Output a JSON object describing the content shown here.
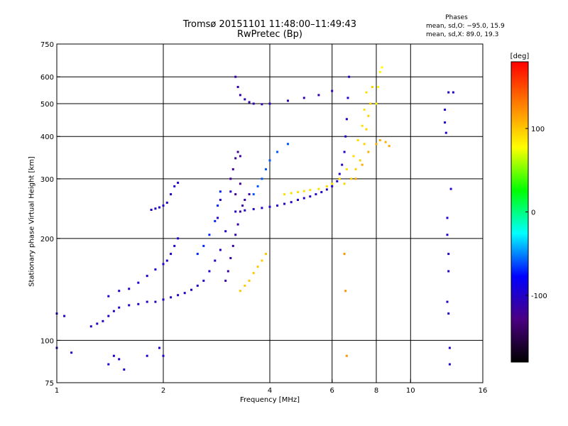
{
  "chart_data": {
    "type": "scatter",
    "title": "Tromsø 20151101 11:48:00–11:49:43",
    "subtitle": "RwPretec (Bp)",
    "phase_info": {
      "title": "Phases",
      "line_o": "mean, sd,O: −95.0, 15.9",
      "line_x": "mean, sd,X:  89.0, 19.3"
    },
    "xlabel": "Frequency [MHz]",
    "ylabel": "Stationary phase Virtual Height [km]",
    "xscale": "log",
    "yscale": "log",
    "xlim": [
      1,
      16
    ],
    "ylim": [
      75,
      750
    ],
    "xticks": [
      1,
      2,
      4,
      6,
      8,
      10,
      16
    ],
    "yticks": [
      75,
      100,
      200,
      300,
      400,
      500,
      600,
      750
    ],
    "grid_x": [
      2,
      4,
      6,
      8,
      10
    ],
    "grid_y": [
      100,
      200,
      300,
      400,
      500,
      600
    ],
    "colorbar": {
      "label": "[deg]",
      "range": [
        -180,
        180
      ],
      "ticks": [
        100,
        0,
        -100
      ],
      "colors": [
        "#000000",
        "#4b0082",
        "#0000ff",
        "#00ffff",
        "#00ff00",
        "#ffff00",
        "#ff8000",
        "#ff0000"
      ]
    },
    "series": [
      {
        "values": [
          [
            1.0,
            120
          ],
          [
            1.05,
            118
          ],
          [
            1.0,
            95
          ],
          [
            1.1,
            92
          ],
          [
            1.25,
            110
          ],
          [
            1.3,
            112
          ],
          [
            1.35,
            114
          ],
          [
            1.4,
            118
          ],
          [
            1.45,
            122
          ],
          [
            1.5,
            125
          ],
          [
            1.6,
            127
          ],
          [
            1.7,
            128
          ],
          [
            1.8,
            130
          ],
          [
            1.9,
            130
          ],
          [
            2.0,
            132
          ],
          [
            2.1,
            134
          ],
          [
            2.2,
            136
          ],
          [
            2.3,
            138
          ],
          [
            2.4,
            141
          ],
          [
            2.5,
            145
          ],
          [
            2.6,
            150
          ],
          [
            2.7,
            160
          ],
          [
            2.8,
            172
          ],
          [
            2.9,
            185
          ],
          [
            3.0,
            210
          ],
          [
            2.85,
            230
          ],
          [
            2.9,
            260
          ],
          [
            3.1,
            275
          ]
        ],
        "phase": -100
      },
      {
        "values": [
          [
            1.4,
            135
          ],
          [
            1.5,
            140
          ],
          [
            1.6,
            142
          ],
          [
            1.7,
            148
          ],
          [
            1.8,
            155
          ],
          [
            1.9,
            162
          ],
          [
            2.0,
            168
          ],
          [
            2.05,
            172
          ],
          [
            2.1,
            180
          ],
          [
            2.15,
            190
          ],
          [
            2.2,
            200
          ]
        ],
        "phase": -95
      },
      {
        "values": [
          [
            1.4,
            85
          ],
          [
            1.45,
            90
          ],
          [
            1.5,
            88
          ],
          [
            1.55,
            82
          ],
          [
            1.8,
            90
          ],
          [
            1.95,
            95
          ],
          [
            2.0,
            90
          ]
        ],
        "phase": -95
      },
      {
        "values": [
          [
            1.85,
            243
          ],
          [
            1.9,
            245
          ],
          [
            1.95,
            247
          ],
          [
            2.0,
            250
          ],
          [
            2.05,
            255
          ],
          [
            2.1,
            270
          ],
          [
            2.15,
            285
          ],
          [
            2.2,
            292
          ]
        ],
        "phase": -100
      },
      {
        "values": [
          [
            2.5,
            180
          ],
          [
            2.6,
            190
          ],
          [
            2.7,
            205
          ],
          [
            2.8,
            225
          ],
          [
            2.85,
            250
          ],
          [
            2.9,
            275
          ]
        ],
        "phase": -70
      },
      {
        "values": [
          [
            3.0,
            150
          ],
          [
            3.05,
            160
          ],
          [
            3.1,
            175
          ],
          [
            3.15,
            190
          ],
          [
            3.2,
            205
          ],
          [
            3.25,
            220
          ],
          [
            3.3,
            240
          ],
          [
            3.35,
            250
          ],
          [
            3.4,
            260
          ],
          [
            3.5,
            270
          ]
        ],
        "phase": -115
      },
      {
        "values": [
          [
            3.1,
            300
          ],
          [
            3.15,
            320
          ],
          [
            3.2,
            345
          ],
          [
            3.25,
            360
          ],
          [
            3.3,
            350
          ],
          [
            3.2,
            270
          ],
          [
            3.3,
            290
          ]
        ],
        "phase": -120
      },
      {
        "values": [
          [
            3.2,
            240
          ],
          [
            3.4,
            242
          ],
          [
            3.6,
            244
          ],
          [
            3.8,
            246
          ],
          [
            4.0,
            248
          ],
          [
            4.2,
            250
          ],
          [
            4.4,
            253
          ],
          [
            4.6,
            256
          ],
          [
            4.8,
            260
          ],
          [
            5.0,
            263
          ],
          [
            5.2,
            266
          ],
          [
            5.4,
            270
          ],
          [
            5.6,
            274
          ],
          [
            5.8,
            279
          ],
          [
            6.0,
            285
          ],
          [
            6.2,
            295
          ],
          [
            6.3,
            310
          ],
          [
            6.4,
            330
          ],
          [
            6.5,
            360
          ],
          [
            6.55,
            400
          ],
          [
            6.6,
            450
          ],
          [
            6.65,
            520
          ],
          [
            6.7,
            600
          ]
        ],
        "phase": -100
      },
      {
        "values": [
          [
            3.2,
            600
          ],
          [
            3.25,
            560
          ],
          [
            3.3,
            530
          ],
          [
            3.4,
            515
          ],
          [
            3.5,
            505
          ],
          [
            3.6,
            500
          ],
          [
            3.8,
            498
          ],
          [
            4.0,
            500
          ],
          [
            4.5,
            510
          ],
          [
            5.0,
            520
          ],
          [
            5.5,
            530
          ],
          [
            6.0,
            545
          ]
        ],
        "phase": -110
      },
      {
        "values": [
          [
            3.6,
            270
          ],
          [
            3.7,
            285
          ],
          [
            3.8,
            300
          ],
          [
            3.9,
            320
          ],
          [
            4.0,
            340
          ],
          [
            4.2,
            360
          ],
          [
            4.5,
            380
          ]
        ],
        "phase": -60
      },
      {
        "values": [
          [
            3.3,
            140
          ],
          [
            3.4,
            145
          ],
          [
            3.5,
            150
          ],
          [
            3.6,
            158
          ],
          [
            3.7,
            165
          ],
          [
            3.8,
            172
          ],
          [
            3.9,
            180
          ]
        ],
        "phase": 100
      },
      {
        "values": [
          [
            4.4,
            270
          ],
          [
            4.6,
            272
          ],
          [
            4.8,
            274
          ],
          [
            5.0,
            276
          ],
          [
            5.2,
            278
          ],
          [
            5.5,
            280
          ],
          [
            5.8,
            285
          ],
          [
            6.0,
            290
          ],
          [
            6.3,
            300
          ],
          [
            6.6,
            320
          ],
          [
            6.9,
            350
          ],
          [
            7.1,
            390
          ],
          [
            7.3,
            430
          ],
          [
            7.4,
            480
          ],
          [
            7.5,
            540
          ]
        ],
        "phase": 90
      },
      {
        "values": [
          [
            6.5,
            290
          ],
          [
            6.8,
            300
          ],
          [
            7.0,
            320
          ],
          [
            7.2,
            340
          ],
          [
            7.4,
            380
          ],
          [
            7.5,
            420
          ],
          [
            7.6,
            460
          ],
          [
            7.7,
            500
          ],
          [
            7.8,
            560
          ]
        ],
        "phase": 95
      },
      {
        "values": [
          [
            7.0,
            300
          ],
          [
            7.3,
            330
          ],
          [
            7.6,
            360
          ],
          [
            8.0,
            380
          ],
          [
            8.2,
            390
          ],
          [
            8.5,
            385
          ],
          [
            8.7,
            375
          ]
        ],
        "phase": 110
      },
      {
        "values": [
          [
            8.0,
            500
          ],
          [
            8.1,
            560
          ],
          [
            8.2,
            620
          ],
          [
            8.3,
            640
          ]
        ],
        "phase": 80
      },
      {
        "values": [
          [
            6.5,
            180
          ],
          [
            6.55,
            140
          ],
          [
            6.6,
            90
          ]
        ],
        "phase": 120
      },
      {
        "values": [
          [
            12.5,
            480
          ],
          [
            12.5,
            440
          ],
          [
            12.6,
            410
          ],
          [
            12.8,
            540
          ],
          [
            13.2,
            540
          ],
          [
            13.0,
            280
          ],
          [
            12.7,
            230
          ],
          [
            12.7,
            205
          ],
          [
            12.8,
            180
          ],
          [
            12.8,
            160
          ],
          [
            12.7,
            130
          ],
          [
            12.8,
            120
          ],
          [
            12.9,
            95
          ],
          [
            12.9,
            85
          ]
        ],
        "phase": -100
      }
    ]
  }
}
